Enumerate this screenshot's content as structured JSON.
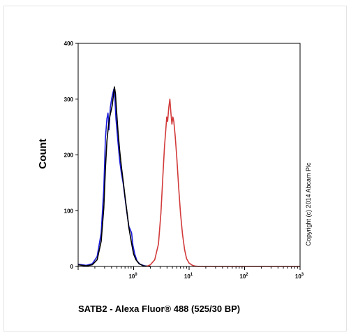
{
  "chart_data": {
    "type": "line",
    "xlabel": "SATB2 - Alexa Fluor® 488 (525/30 BP)",
    "ylabel": "Count",
    "x_scale": "log",
    "xlim": [
      0.1,
      1000
    ],
    "ylim": [
      0,
      400
    ],
    "x_ticks": [
      {
        "value": 1,
        "base": "10",
        "exp": "0"
      },
      {
        "value": 10,
        "base": "10",
        "exp": "1"
      },
      {
        "value": 100,
        "base": "10",
        "exp": "2"
      },
      {
        "value": 1000,
        "base": "10",
        "exp": "3"
      }
    ],
    "y_ticks": [
      0,
      100,
      200,
      300,
      400
    ],
    "annotation": "Copyright (c) 2014 Abcam Plc",
    "series": [
      {
        "color": "#1a1adc",
        "points": [
          [
            0.1,
            4
          ],
          [
            0.14,
            2
          ],
          [
            0.18,
            5
          ],
          [
            0.22,
            18
          ],
          [
            0.26,
            60
          ],
          [
            0.29,
            140
          ],
          [
            0.31,
            230
          ],
          [
            0.33,
            265
          ],
          [
            0.345,
            275
          ],
          [
            0.36,
            245
          ],
          [
            0.38,
            285
          ],
          [
            0.4,
            300
          ],
          [
            0.42,
            310
          ],
          [
            0.44,
            318
          ],
          [
            0.46,
            300
          ],
          [
            0.48,
            265
          ],
          [
            0.52,
            225
          ],
          [
            0.56,
            190
          ],
          [
            0.6,
            168
          ],
          [
            0.65,
            148
          ],
          [
            0.7,
            122
          ],
          [
            0.76,
            95
          ],
          [
            0.82,
            72
          ],
          [
            0.88,
            65
          ],
          [
            0.92,
            60
          ],
          [
            0.97,
            38
          ],
          [
            1.05,
            22
          ],
          [
            1.15,
            10
          ],
          [
            1.3,
            4
          ],
          [
            1.6,
            1
          ],
          [
            2,
            0
          ]
        ]
      },
      {
        "color": "#000000",
        "points": [
          [
            0.1,
            3
          ],
          [
            0.14,
            1
          ],
          [
            0.18,
            3
          ],
          [
            0.22,
            12
          ],
          [
            0.26,
            45
          ],
          [
            0.29,
            105
          ],
          [
            0.31,
            175
          ],
          [
            0.33,
            225
          ],
          [
            0.35,
            250
          ],
          [
            0.37,
            268
          ],
          [
            0.39,
            278
          ],
          [
            0.41,
            288
          ],
          [
            0.43,
            305
          ],
          [
            0.45,
            322
          ],
          [
            0.47,
            310
          ],
          [
            0.49,
            282
          ],
          [
            0.52,
            245
          ],
          [
            0.56,
            208
          ],
          [
            0.6,
            180
          ],
          [
            0.65,
            152
          ],
          [
            0.7,
            125
          ],
          [
            0.76,
            97
          ],
          [
            0.82,
            70
          ],
          [
            0.88,
            52
          ],
          [
            0.94,
            36
          ],
          [
            1.0,
            22
          ],
          [
            1.1,
            12
          ],
          [
            1.25,
            5
          ],
          [
            1.5,
            1
          ],
          [
            2,
            0
          ]
        ]
      },
      {
        "color": "#d23a3a",
        "points": [
          [
            1.7,
            0
          ],
          [
            2.0,
            3
          ],
          [
            2.4,
            12
          ],
          [
            2.8,
            40
          ],
          [
            3.1,
            95
          ],
          [
            3.4,
            170
          ],
          [
            3.6,
            215
          ],
          [
            3.8,
            245
          ],
          [
            3.95,
            268
          ],
          [
            4.1,
            260
          ],
          [
            4.3,
            285
          ],
          [
            4.5,
            300
          ],
          [
            4.7,
            275
          ],
          [
            4.9,
            255
          ],
          [
            5.1,
            268
          ],
          [
            5.3,
            260
          ],
          [
            5.6,
            235
          ],
          [
            6.0,
            195
          ],
          [
            6.5,
            140
          ],
          [
            7.0,
            95
          ],
          [
            7.6,
            58
          ],
          [
            8.3,
            30
          ],
          [
            9.0,
            14
          ],
          [
            10,
            6
          ],
          [
            11.5,
            2
          ],
          [
            13,
            0.5
          ],
          [
            16,
            0
          ],
          [
            1000,
            0
          ]
        ]
      }
    ]
  }
}
